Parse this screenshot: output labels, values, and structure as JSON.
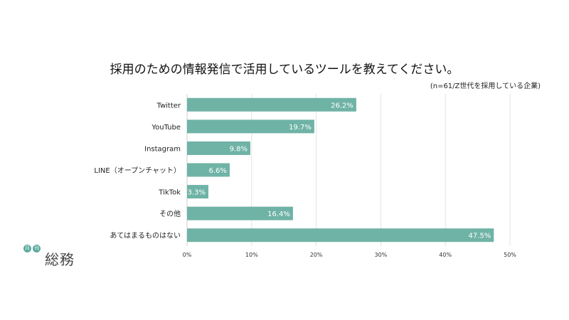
{
  "chart_data": {
    "type": "bar",
    "orientation": "horizontal",
    "title": "採用のための情報発信で活用しているツールを教えてください。",
    "subtitle": "(n=61/Z世代を採用している企業)",
    "categories": [
      "Twitter",
      "YouTube",
      "Instagram",
      "LINE（オープンチャット）",
      "TikTok",
      "その他",
      "あてはまるものはない"
    ],
    "values": [
      26.2,
      19.7,
      9.8,
      6.6,
      3.3,
      16.4,
      47.5
    ],
    "value_labels": [
      "26.2%",
      "19.7%",
      "9.8%",
      "6.6%",
      "3.3%",
      "16.4%",
      "47.5%"
    ],
    "xlim": [
      0,
      50
    ],
    "xticks": [
      0,
      10,
      20,
      30,
      40,
      50
    ],
    "xtick_labels": [
      "0%",
      "10%",
      "20%",
      "30%",
      "40%",
      "50%"
    ],
    "grid": true,
    "bar_color": "#6fb3a6"
  },
  "logo": {
    "badge_1": "月",
    "badge_2": "刊",
    "text": "総務"
  }
}
